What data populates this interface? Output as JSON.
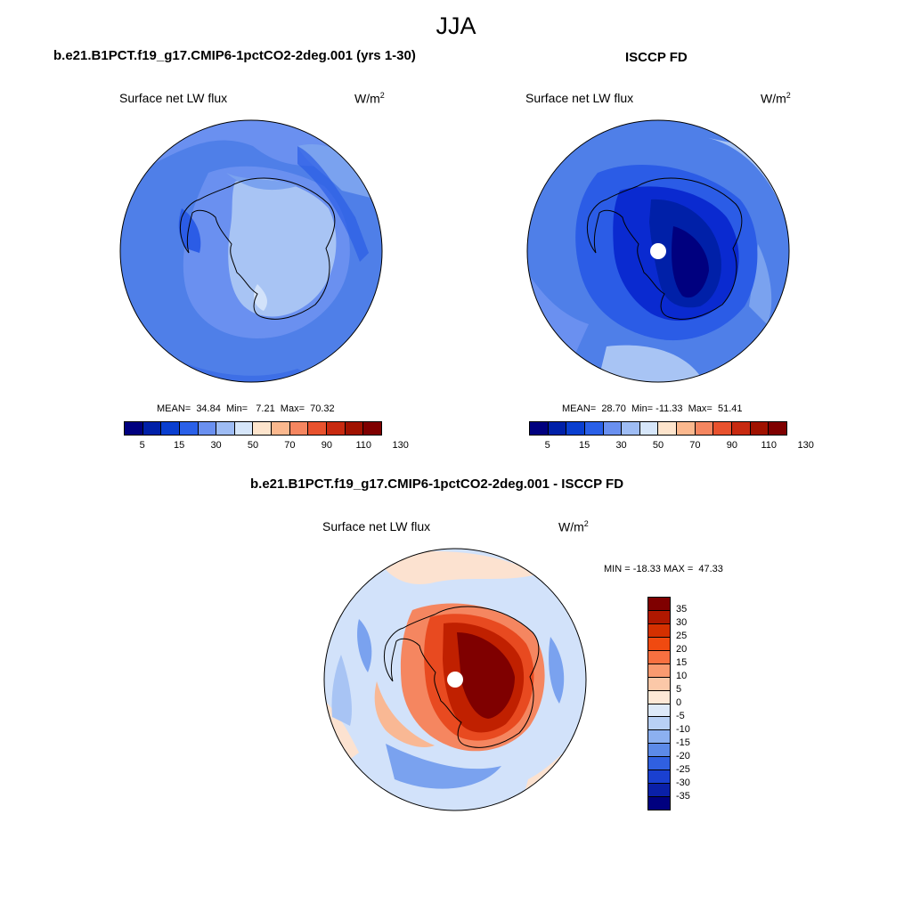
{
  "page": {
    "title": "JJA"
  },
  "panels": [
    {
      "title": "b.e21.B1PCT.f19_g17.CMIP6-1pctCO2-2deg.001 (yrs 1-30)",
      "subtitle": "Surface net LW flux",
      "units": "W/m",
      "units_exp": "2",
      "stats": "MEAN=  34.84  Min=   7.21  Max=  70.32",
      "colorbar_ticks": [
        "5",
        "15",
        "30",
        "50",
        "70",
        "90",
        "110",
        "130"
      ],
      "colorbar_colors": [
        "#00007f",
        "#0020a8",
        "#0a3fd0",
        "#2a60e8",
        "#6a90f0",
        "#9ebcf4",
        "#d6e6fa",
        "#fde4cc",
        "#fbb88e",
        "#f58660",
        "#e8522e",
        "#c82a10",
        "#a01200",
        "#7f0000"
      ]
    },
    {
      "title": "ISCCP FD",
      "subtitle": "Surface net LW flux",
      "units": "W/m",
      "units_exp": "2",
      "stats": "MEAN=  28.70  Min= -11.33  Max=  51.41",
      "colorbar_ticks": [
        "5",
        "15",
        "30",
        "50",
        "70",
        "90",
        "110",
        "130"
      ],
      "colorbar_colors": [
        "#00007f",
        "#0020a8",
        "#0a3fd0",
        "#2a60e8",
        "#6a90f0",
        "#9ebcf4",
        "#d6e6fa",
        "#fde4cc",
        "#fbb88e",
        "#f58660",
        "#e8522e",
        "#c82a10",
        "#a01200",
        "#7f0000"
      ]
    },
    {
      "title": "b.e21.B1PCT.f19_g17.CMIP6-1pctCO2-2deg.001 - ISCCP FD",
      "subtitle": "Surface net LW flux",
      "units": "W/m",
      "units_exp": "2",
      "stats": "MIN = -18.33 MAX =  47.33",
      "colorbar_ticks": [
        "35",
        "30",
        "25",
        "20",
        "15",
        "10",
        "5",
        "0",
        "-5",
        "-10",
        "-15",
        "-20",
        "-25",
        "-30",
        "-35"
      ],
      "colorbar_colors": [
        "#7f0000",
        "#b01800",
        "#d43000",
        "#f04a10",
        "#f87040",
        "#f99a70",
        "#fbc8a8",
        "#fde8d6",
        "#dde9f8",
        "#b8d0f4",
        "#8cb0f0",
        "#5c8ae8",
        "#3060e0",
        "#1a40d0",
        "#0a20a8",
        "#00007f"
      ]
    }
  ],
  "map_legend": {
    "field_colors": {
      "blue_dark": "#00007f",
      "blue_1": "#0a2ad0",
      "blue_2": "#2b5ce6",
      "blue_3": "#4f7fe8",
      "blue_4": "#7aa2ef",
      "blue_5": "#a8c4f4",
      "blue_6": "#d2e2fa",
      "red_1": "#fce2d0",
      "red_2": "#f9b894",
      "red_3": "#f58660",
      "red_4": "#e84a20",
      "red_5": "#c02000",
      "red_dark": "#7f0000"
    }
  }
}
